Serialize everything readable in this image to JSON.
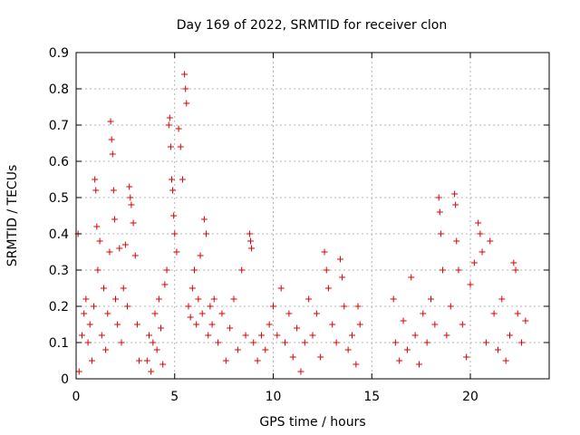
{
  "chart_data": {
    "type": "scatter",
    "title": "Day 169 of 2022, SRMTID for receiver clon",
    "xlabel": "GPS time / hours",
    "ylabel": "SRMTID / TECUs",
    "xlim": [
      0,
      24
    ],
    "ylim": [
      0,
      0.9
    ],
    "x_ticks": [
      0,
      5,
      10,
      15,
      20
    ],
    "x_tick_labels": [
      "0",
      "5",
      "10",
      "15",
      "20"
    ],
    "y_ticks": [
      0,
      0.1,
      0.2,
      0.3,
      0.4,
      0.5,
      0.6,
      0.7,
      0.8,
      0.9
    ],
    "y_tick_labels": [
      "0",
      "0.1",
      "0.2",
      "0.3",
      "0.4",
      "0.5",
      "0.6",
      "0.7",
      "0.8",
      "0.9"
    ],
    "grid": true,
    "marker": "+",
    "color": "#dd0000",
    "series": [
      {
        "name": "SRMTID",
        "points": [
          [
            0.1,
            0.4
          ],
          [
            0.15,
            0.02
          ],
          [
            0.3,
            0.12
          ],
          [
            0.4,
            0.18
          ],
          [
            0.5,
            0.22
          ],
          [
            0.6,
            0.1
          ],
          [
            0.7,
            0.15
          ],
          [
            0.8,
            0.05
          ],
          [
            0.9,
            0.2
          ],
          [
            0.95,
            0.55
          ],
          [
            1.0,
            0.52
          ],
          [
            1.05,
            0.42
          ],
          [
            1.1,
            0.3
          ],
          [
            1.2,
            0.38
          ],
          [
            1.3,
            0.12
          ],
          [
            1.4,
            0.25
          ],
          [
            1.5,
            0.08
          ],
          [
            1.6,
            0.18
          ],
          [
            1.7,
            0.35
          ],
          [
            1.75,
            0.71
          ],
          [
            1.8,
            0.66
          ],
          [
            1.85,
            0.62
          ],
          [
            1.9,
            0.52
          ],
          [
            1.95,
            0.44
          ],
          [
            2.0,
            0.22
          ],
          [
            2.1,
            0.15
          ],
          [
            2.2,
            0.36
          ],
          [
            2.3,
            0.1
          ],
          [
            2.4,
            0.25
          ],
          [
            2.5,
            0.37
          ],
          [
            2.6,
            0.2
          ],
          [
            2.7,
            0.53
          ],
          [
            2.75,
            0.5
          ],
          [
            2.8,
            0.48
          ],
          [
            2.9,
            0.43
          ],
          [
            3.0,
            0.34
          ],
          [
            3.1,
            0.15
          ],
          [
            3.2,
            0.05
          ],
          [
            3.6,
            0.05
          ],
          [
            3.7,
            0.12
          ],
          [
            3.8,
            0.02
          ],
          [
            3.9,
            0.1
          ],
          [
            4.0,
            0.18
          ],
          [
            4.1,
            0.08
          ],
          [
            4.2,
            0.22
          ],
          [
            4.3,
            0.14
          ],
          [
            4.4,
            0.04
          ],
          [
            4.5,
            0.26
          ],
          [
            4.6,
            0.3
          ],
          [
            4.7,
            0.7
          ],
          [
            4.75,
            0.72
          ],
          [
            4.8,
            0.64
          ],
          [
            4.85,
            0.55
          ],
          [
            4.9,
            0.52
          ],
          [
            4.95,
            0.45
          ],
          [
            5.0,
            0.4
          ],
          [
            5.1,
            0.35
          ],
          [
            5.2,
            0.69
          ],
          [
            5.3,
            0.64
          ],
          [
            5.4,
            0.55
          ],
          [
            5.5,
            0.84
          ],
          [
            5.55,
            0.8
          ],
          [
            5.6,
            0.76
          ],
          [
            5.7,
            0.2
          ],
          [
            5.8,
            0.17
          ],
          [
            5.9,
            0.25
          ],
          [
            6.0,
            0.3
          ],
          [
            6.1,
            0.15
          ],
          [
            6.2,
            0.22
          ],
          [
            6.3,
            0.34
          ],
          [
            6.4,
            0.18
          ],
          [
            6.5,
            0.44
          ],
          [
            6.6,
            0.4
          ],
          [
            6.7,
            0.12
          ],
          [
            6.8,
            0.2
          ],
          [
            6.9,
            0.15
          ],
          [
            7.0,
            0.22
          ],
          [
            7.2,
            0.1
          ],
          [
            7.4,
            0.18
          ],
          [
            7.6,
            0.05
          ],
          [
            7.8,
            0.14
          ],
          [
            8.0,
            0.22
          ],
          [
            8.2,
            0.08
          ],
          [
            8.4,
            0.3
          ],
          [
            8.6,
            0.12
          ],
          [
            8.8,
            0.4
          ],
          [
            8.85,
            0.38
          ],
          [
            8.9,
            0.36
          ],
          [
            9.0,
            0.1
          ],
          [
            9.2,
            0.05
          ],
          [
            9.4,
            0.12
          ],
          [
            9.6,
            0.08
          ],
          [
            9.8,
            0.15
          ],
          [
            10.0,
            0.2
          ],
          [
            10.2,
            0.12
          ],
          [
            10.4,
            0.25
          ],
          [
            10.6,
            0.1
          ],
          [
            10.8,
            0.18
          ],
          [
            11.0,
            0.06
          ],
          [
            11.2,
            0.14
          ],
          [
            11.4,
            0.02
          ],
          [
            11.6,
            0.1
          ],
          [
            11.8,
            0.22
          ],
          [
            12.0,
            0.12
          ],
          [
            12.2,
            0.18
          ],
          [
            12.4,
            0.06
          ],
          [
            12.6,
            0.35
          ],
          [
            12.7,
            0.3
          ],
          [
            12.8,
            0.25
          ],
          [
            13.0,
            0.15
          ],
          [
            13.2,
            0.1
          ],
          [
            13.4,
            0.33
          ],
          [
            13.5,
            0.28
          ],
          [
            13.6,
            0.2
          ],
          [
            13.8,
            0.08
          ],
          [
            14.0,
            0.12
          ],
          [
            14.2,
            0.04
          ],
          [
            14.3,
            0.2
          ],
          [
            14.4,
            0.15
          ],
          [
            16.1,
            0.22
          ],
          [
            16.2,
            0.1
          ],
          [
            16.4,
            0.05
          ],
          [
            16.6,
            0.16
          ],
          [
            16.8,
            0.08
          ],
          [
            17.0,
            0.28
          ],
          [
            17.2,
            0.12
          ],
          [
            17.4,
            0.04
          ],
          [
            17.6,
            0.18
          ],
          [
            17.8,
            0.1
          ],
          [
            18.0,
            0.22
          ],
          [
            18.2,
            0.15
          ],
          [
            18.4,
            0.5
          ],
          [
            18.45,
            0.46
          ],
          [
            18.5,
            0.4
          ],
          [
            18.6,
            0.3
          ],
          [
            18.8,
            0.12
          ],
          [
            19.0,
            0.2
          ],
          [
            19.2,
            0.51
          ],
          [
            19.25,
            0.48
          ],
          [
            19.3,
            0.38
          ],
          [
            19.4,
            0.3
          ],
          [
            19.6,
            0.15
          ],
          [
            19.8,
            0.06
          ],
          [
            20.0,
            0.26
          ],
          [
            20.2,
            0.32
          ],
          [
            20.4,
            0.43
          ],
          [
            20.5,
            0.4
          ],
          [
            20.6,
            0.35
          ],
          [
            20.8,
            0.1
          ],
          [
            21.0,
            0.38
          ],
          [
            21.2,
            0.18
          ],
          [
            21.4,
            0.08
          ],
          [
            21.6,
            0.22
          ],
          [
            21.8,
            0.05
          ],
          [
            22.0,
            0.12
          ],
          [
            22.2,
            0.32
          ],
          [
            22.3,
            0.3
          ],
          [
            22.4,
            0.18
          ],
          [
            22.6,
            0.1
          ],
          [
            22.8,
            0.16
          ]
        ]
      }
    ]
  }
}
